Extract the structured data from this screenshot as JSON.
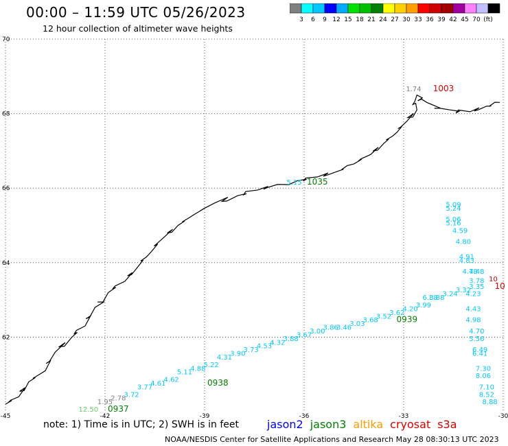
{
  "title": "00:00 – 11:59 UTC 05/26/2023",
  "subtitle": "12 hour collection of altimeter wave heights",
  "colorbar": {
    "colors": [
      "#808080",
      "#00ffff",
      "#00c8ff",
      "#0000ff",
      "#00aaff",
      "#00e000",
      "#00c000",
      "#008000",
      "#ffff00",
      "#ffd000",
      "#ffa000",
      "#ff0000",
      "#d00000",
      "#a00000",
      "#a000a0",
      "#ff80ff",
      "#c0c0ff",
      "#000000"
    ],
    "labels": [
      "3",
      "6",
      "9",
      "12",
      "15",
      "18",
      "21",
      "24",
      "27",
      "30",
      "33",
      "36",
      "39",
      "42",
      "45",
      "70",
      "(ft)"
    ]
  },
  "axes": {
    "lat_ticks": [
      "70",
      "68",
      "66",
      "64",
      "62"
    ],
    "lon_ticks": [
      "-45",
      "-42",
      "-39",
      "-36",
      "-33",
      "-30"
    ],
    "lat_range": [
      60,
      70
    ],
    "lon_range": [
      -45,
      -30
    ]
  },
  "times": [
    {
      "text": "1003",
      "color": "#e00000",
      "lon": -31.8,
      "lat": 68.6
    },
    {
      "text": "1035",
      "color": "#008000",
      "lon": -35.6,
      "lat": 66.1
    },
    {
      "text": "0939",
      "color": "#008000",
      "lon": -32.9,
      "lat": 62.4
    },
    {
      "text": "0938",
      "color": "#008000",
      "lon": -38.6,
      "lat": 60.7
    },
    {
      "text": "0937",
      "color": "#008000",
      "lon": -41.6,
      "lat": 60.0
    },
    {
      "text": "10",
      "color": "#e00000",
      "lon": -30.1,
      "lat": 63.3
    }
  ],
  "track_ids": {
    "cryosat_partial": "10"
  },
  "jason3_track": [
    {
      "v": "12.50",
      "lon": -42.5,
      "lat": 60.0,
      "c": "#66cc66"
    },
    {
      "v": "1.95",
      "lon": -42.0,
      "lat": 60.2,
      "c": "#808080"
    },
    {
      "v": "2.78",
      "lon": -41.6,
      "lat": 60.3,
      "c": "#808080"
    },
    {
      "v": "3.72",
      "lon": -41.2,
      "lat": 60.4,
      "c": "#00c8ff"
    },
    {
      "v": "3.77",
      "lon": -40.8,
      "lat": 60.6,
      "c": "#00c8ff"
    },
    {
      "v": "4.61",
      "lon": -40.4,
      "lat": 60.7,
      "c": "#00c8ff"
    },
    {
      "v": "4.62",
      "lon": -40.0,
      "lat": 60.8,
      "c": "#00c8ff"
    },
    {
      "v": "5.11",
      "lon": -39.6,
      "lat": 61.0,
      "c": "#00c8ff"
    },
    {
      "v": "4.88",
      "lon": -39.2,
      "lat": 61.1,
      "c": "#00c8ff"
    },
    {
      "v": "5.22",
      "lon": -38.8,
      "lat": 61.2,
      "c": "#00c8ff"
    },
    {
      "v": "4.31",
      "lon": -38.4,
      "lat": 61.4,
      "c": "#00c8ff"
    },
    {
      "v": "3.90",
      "lon": -38.0,
      "lat": 61.5,
      "c": "#00c8ff"
    },
    {
      "v": "3.73",
      "lon": -37.6,
      "lat": 61.6,
      "c": "#00c8ff"
    },
    {
      "v": "4.53",
      "lon": -37.2,
      "lat": 61.7,
      "c": "#00c8ff"
    },
    {
      "v": "4.32",
      "lon": -36.8,
      "lat": 61.8,
      "c": "#00c8ff"
    },
    {
      "v": "3.88",
      "lon": -36.4,
      "lat": 61.9,
      "c": "#00c8ff"
    },
    {
      "v": "3.67",
      "lon": -36.0,
      "lat": 62.0,
      "c": "#00c8ff"
    },
    {
      "v": "3.00",
      "lon": -35.6,
      "lat": 62.1,
      "c": "#00c8ff"
    },
    {
      "v": "3.86",
      "lon": -35.2,
      "lat": 62.2,
      "c": "#00c8ff"
    },
    {
      "v": "3.46",
      "lon": -34.8,
      "lat": 62.2,
      "c": "#00c8ff"
    },
    {
      "v": "3.03",
      "lon": -34.4,
      "lat": 62.3,
      "c": "#00c8ff"
    },
    {
      "v": "3.68",
      "lon": -34.0,
      "lat": 62.4,
      "c": "#00c8ff"
    },
    {
      "v": "3.52",
      "lon": -33.6,
      "lat": 62.5,
      "c": "#00c8ff"
    },
    {
      "v": "3.62",
      "lon": -33.2,
      "lat": 62.6,
      "c": "#00c8ff"
    },
    {
      "v": "4.20",
      "lon": -32.8,
      "lat": 62.7,
      "c": "#00c8ff"
    },
    {
      "v": "3.99",
      "lon": -32.4,
      "lat": 62.8,
      "c": "#00c8ff"
    },
    {
      "v": "3.88",
      "lon": -32.0,
      "lat": 63.0,
      "c": "#00c8ff"
    },
    {
      "v": "3.24",
      "lon": -31.6,
      "lat": 63.1,
      "c": "#00c8ff"
    },
    {
      "v": "3.32",
      "lon": -31.2,
      "lat": 63.2,
      "c": "#00c8ff"
    }
  ],
  "right_track": [
    {
      "v": "5.09",
      "lon": -31.5,
      "lat": 65.5
    },
    {
      "v": "5.24",
      "lon": -31.5,
      "lat": 65.4
    },
    {
      "v": "5.06",
      "lon": -31.5,
      "lat": 65.1
    },
    {
      "v": "5.16",
      "lon": -31.5,
      "lat": 65.0
    },
    {
      "v": "4.59",
      "lon": -31.3,
      "lat": 64.8
    },
    {
      "v": "4.80",
      "lon": -31.2,
      "lat": 64.5
    },
    {
      "v": "4.91",
      "lon": -31.1,
      "lat": 64.1
    },
    {
      "v": "4.83",
      "lon": -31.1,
      "lat": 64.0
    },
    {
      "v": "4.78",
      "lon": -31.0,
      "lat": 63.7
    },
    {
      "v": "4.48",
      "lon": -30.8,
      "lat": 63.7
    },
    {
      "v": "3.78",
      "lon": -30.8,
      "lat": 63.45
    },
    {
      "v": "3.35",
      "lon": -30.8,
      "lat": 63.3
    },
    {
      "v": "4.23",
      "lon": -30.9,
      "lat": 63.1
    },
    {
      "v": "4.43",
      "lon": -30.9,
      "lat": 62.7
    },
    {
      "v": "4.98",
      "lon": -30.9,
      "lat": 62.4
    },
    {
      "v": "4.70",
      "lon": -30.8,
      "lat": 62.1
    },
    {
      "v": "5.56",
      "lon": -30.8,
      "lat": 61.9
    },
    {
      "v": "6.49",
      "lon": -30.7,
      "lat": 61.6
    },
    {
      "v": "6.41",
      "lon": -30.7,
      "lat": 61.5
    },
    {
      "v": "7.30",
      "lon": -30.6,
      "lat": 61.1
    },
    {
      "v": "8.06",
      "lon": -30.6,
      "lat": 60.9
    },
    {
      "v": "7.10",
      "lon": -30.5,
      "lat": 60.6
    },
    {
      "v": "8.52",
      "lon": -30.5,
      "lat": 60.4
    },
    {
      "v": "8.88",
      "lon": -30.4,
      "lat": 60.2
    }
  ],
  "other_values": [
    {
      "v": "1.74",
      "lon": -32.7,
      "lat": 68.6,
      "c": "#808080"
    },
    {
      "v": "5.15",
      "lon": -36.3,
      "lat": 66.1,
      "c": "#00c8ff"
    },
    {
      "v": "6.88",
      "lon": -32.2,
      "lat": 63.0,
      "c": "#00c8ff"
    },
    {
      "v": "10",
      "lon": -30.3,
      "lat": 63.5,
      "c": "#e00000"
    }
  ],
  "note": "note:  1) Time is in UTC; 2) SWH is in feet",
  "legend": [
    {
      "name": "jason2",
      "color": "#0000ff"
    },
    {
      "name": "jason3",
      "color": "#008000"
    },
    {
      "name": "altika",
      "color": "#ff9900"
    },
    {
      "name": "cryosat",
      "color": "#e00000"
    },
    {
      "name": "s3a",
      "color": "#cc0000"
    }
  ],
  "credit": "NOAA/NESDIS Center for Satellite Applications and Research     May 28 08:30:13 UTC 2023"
}
